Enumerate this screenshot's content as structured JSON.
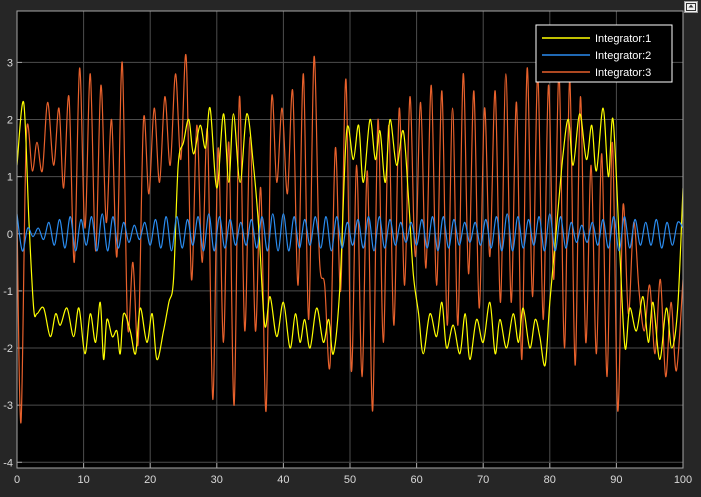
{
  "window": {
    "undock_icon": "undock-axes-icon"
  },
  "colors": {
    "background": "#262626",
    "axes_bg": "#000000",
    "grid": "#4d4d4d",
    "axes_border": "#a6a6a6",
    "tick_text": "#d9d9d9"
  },
  "chart_data": {
    "type": "line",
    "title": "",
    "xlabel": "",
    "ylabel": "",
    "xlim": [
      0,
      100
    ],
    "ylim": [
      -4.1,
      3.9
    ],
    "xticks": [
      0,
      10,
      20,
      30,
      40,
      50,
      60,
      70,
      80,
      90,
      100
    ],
    "yticks": [
      -4,
      -3,
      -2,
      -1,
      0,
      1,
      2,
      3
    ],
    "grid": true,
    "legend_position": "top-right",
    "series": [
      {
        "name": "Integrator:1",
        "color": "#ffff00",
        "x": [
          0,
          1,
          1.8,
          2.5,
          3,
          4,
          5,
          5.8,
          6.5,
          7.5,
          8.5,
          9.3,
          10.2,
          11,
          11.8,
          12.5,
          13,
          13.5,
          14.3,
          15,
          15.5,
          16,
          17,
          17.8,
          18.5,
          19.5,
          20.3,
          21,
          22,
          22.8,
          23.5,
          24.2,
          25,
          25.8,
          26.5,
          27.5,
          28.3,
          29,
          30,
          31,
          31.8,
          32.5,
          33.5,
          34.5,
          35.5,
          36.3,
          37.2,
          38,
          39,
          40,
          41,
          41.8,
          42.5,
          43.2,
          44,
          45,
          46,
          46.8,
          47.5,
          48.5,
          49.5,
          50.5,
          51.3,
          52,
          53,
          53.8,
          54.5,
          55.3,
          56,
          57,
          58,
          58.8,
          59.5,
          60.3,
          61,
          62,
          63,
          63.8,
          64.5,
          65.5,
          66.5,
          67.3,
          68,
          69,
          70,
          71,
          71.8,
          72.5,
          73.5,
          74.5,
          75.3,
          76,
          77,
          77.8,
          78.5,
          79.3,
          80,
          81,
          82,
          82.8,
          83.5,
          84.5,
          85.5,
          86.3,
          87,
          88,
          88.8,
          89.5,
          90.5,
          91.3,
          92,
          93,
          94,
          94.8,
          95.5,
          96.5,
          97.5,
          98.3,
          99.2,
          100
        ],
        "y": [
          1.2,
          2.3,
          0.2,
          -1.3,
          -1.4,
          -1.3,
          -1.8,
          -1.4,
          -1.6,
          -1.3,
          -1.8,
          -1.3,
          -2.1,
          -1.4,
          -1.9,
          -1.2,
          -2.2,
          -1.5,
          -1.8,
          -1.7,
          -2.1,
          -1.4,
          -1.7,
          -2.1,
          -1.3,
          -1.9,
          -1.4,
          -2.2,
          -1.7,
          -1.2,
          -0.8,
          1.2,
          1.6,
          2.0,
          1.4,
          1.9,
          1.5,
          2.2,
          0.8,
          2.1,
          0.9,
          2.1,
          0.9,
          2.1,
          1.2,
          0.1,
          -1.6,
          -1.1,
          -1.8,
          -1.2,
          -2.0,
          -1.4,
          -1.9,
          -1.5,
          -2.0,
          -1.3,
          -1.9,
          -1.5,
          -2.1,
          -0.9,
          1.8,
          1.3,
          1.9,
          0.9,
          2.0,
          1.3,
          1.8,
          0.9,
          2.0,
          1.2,
          1.8,
          0.6,
          -0.7,
          -1.4,
          -2.1,
          -1.4,
          -1.8,
          -1.2,
          -2.0,
          -1.6,
          -2.1,
          -1.4,
          -2.2,
          -1.5,
          -1.9,
          -1.2,
          -2.1,
          -1.5,
          -2.0,
          -1.4,
          -1.9,
          -1.3,
          -2.0,
          -1.5,
          -1.8,
          -2.3,
          -1.2,
          0.1,
          1.4,
          2.0,
          1.2,
          2.1,
          1.3,
          1.9,
          1.1,
          2.2,
          1.0,
          2.0,
          -0.3,
          -2.0,
          -1.3,
          -1.7,
          -1.1,
          -1.9,
          -1.2,
          -2.2,
          -1.3,
          -2.0,
          -1.3,
          0.8
        ]
      },
      {
        "name": "Integrator:2",
        "color": "#2a8cf0",
        "x": [
          0,
          0.8,
          1.6,
          2.4,
          3.2,
          4.0,
          4.8,
          5.6,
          6.4,
          7.2,
          8.0,
          8.8,
          9.6,
          10.4,
          11.2,
          12.0,
          12.8,
          13.6,
          14.4,
          15.2,
          16.0,
          16.8,
          17.6,
          18.4,
          19.2,
          20.0,
          20.8,
          21.6,
          22.4,
          23.2,
          24.0,
          24.8,
          25.6,
          26.4,
          27.2,
          28.0,
          28.8,
          29.6,
          30.4,
          31.2,
          32.0,
          32.8,
          33.6,
          34.4,
          35.2,
          36.0,
          36.8,
          37.6,
          38.4,
          39.2,
          40.0,
          40.8,
          41.6,
          42.4,
          43.2,
          44.0,
          44.8,
          45.6,
          46.4,
          47.2,
          48.0,
          48.8,
          49.6,
          50.4,
          51.2,
          52.0,
          52.8,
          53.6,
          54.4,
          55.2,
          56.0,
          56.8,
          57.6,
          58.4,
          59.2,
          60.0,
          60.8,
          61.6,
          62.4,
          63.2,
          64.0,
          64.8,
          65.6,
          66.4,
          67.2,
          68.0,
          68.8,
          69.6,
          70.4,
          71.2,
          72.0,
          72.8,
          73.6,
          74.4,
          75.2,
          76.0,
          76.8,
          77.6,
          78.4,
          79.2,
          80.0,
          80.8,
          81.6,
          82.4,
          83.2,
          84.0,
          84.8,
          85.6,
          86.4,
          87.2,
          88.0,
          88.8,
          89.6,
          90.4,
          91.2,
          92.0,
          92.8,
          93.6,
          94.4,
          95.2,
          96.0,
          96.8,
          97.6,
          98.4,
          99.2,
          100
        ],
        "y": [
          0.35,
          -0.3,
          0.1,
          -0.05,
          0.1,
          -0.1,
          0.2,
          -0.2,
          0.25,
          -0.25,
          0.3,
          -0.3,
          0.25,
          -0.2,
          0.3,
          -0.3,
          0.35,
          -0.3,
          0.3,
          -0.25,
          0.2,
          -0.15,
          0.15,
          -0.1,
          0.2,
          -0.2,
          0.25,
          -0.25,
          0.3,
          -0.3,
          0.3,
          -0.25,
          0.25,
          -0.2,
          0.3,
          -0.3,
          0.35,
          -0.3,
          0.3,
          -0.25,
          0.25,
          -0.2,
          0.2,
          -0.2,
          0.25,
          -0.25,
          0.3,
          -0.3,
          0.35,
          -0.3,
          0.35,
          -0.3,
          0.3,
          -0.25,
          0.25,
          -0.2,
          0.3,
          -0.25,
          0.3,
          -0.3,
          0.3,
          -0.25,
          0.2,
          -0.2,
          0.25,
          -0.25,
          0.3,
          -0.3,
          0.3,
          -0.25,
          0.25,
          -0.2,
          0.2,
          -0.15,
          0.2,
          -0.2,
          0.25,
          -0.25,
          0.3,
          -0.3,
          0.3,
          -0.25,
          0.25,
          -0.2,
          0.2,
          -0.15,
          0.2,
          -0.2,
          0.25,
          -0.25,
          0.3,
          -0.3,
          0.35,
          -0.3,
          0.3,
          -0.25,
          0.25,
          -0.2,
          0.3,
          -0.3,
          0.35,
          -0.3,
          0.3,
          -0.25,
          0.2,
          -0.15,
          0.15,
          -0.15,
          0.2,
          -0.2,
          0.25,
          -0.25,
          0.3,
          -0.3,
          0.3,
          -0.25,
          0.25,
          -0.2,
          0.2,
          -0.2,
          0.25,
          -0.25,
          0.2,
          -0.2,
          0.2,
          0.1
        ]
      },
      {
        "name": "Integrator:3",
        "color": "#e8612c",
        "x": [
          0,
          0.6,
          1.4,
          2.3,
          3.0,
          3.8,
          4.6,
          5.5,
          6.3,
          7.0,
          7.8,
          8.6,
          9.4,
          10.2,
          11.0,
          11.8,
          12.6,
          13.4,
          14.2,
          15.0,
          15.8,
          16.6,
          17.4,
          18.2,
          19.0,
          19.8,
          20.6,
          21.4,
          22.2,
          23.0,
          23.8,
          24.6,
          25.4,
          26.2,
          27.0,
          27.8,
          28.6,
          29.4,
          30.2,
          31.0,
          31.8,
          32.6,
          33.4,
          34.2,
          35.0,
          35.8,
          36.6,
          37.4,
          38.2,
          39.0,
          39.8,
          40.6,
          41.4,
          42.2,
          43.0,
          43.8,
          44.6,
          45.4,
          46.2,
          47.0,
          47.8,
          48.6,
          49.4,
          50.2,
          51.0,
          51.8,
          52.6,
          53.4,
          54.2,
          55.0,
          55.8,
          56.6,
          57.4,
          58.2,
          59.0,
          59.8,
          60.6,
          61.4,
          62.2,
          63.0,
          63.8,
          64.6,
          65.4,
          66.2,
          67.0,
          67.8,
          68.6,
          69.4,
          70.2,
          71.0,
          71.8,
          72.6,
          73.4,
          74.2,
          75.0,
          75.8,
          76.6,
          77.4,
          78.2,
          79.0,
          79.8,
          80.6,
          81.4,
          82.2,
          83.0,
          83.8,
          84.6,
          85.4,
          86.2,
          87.0,
          87.8,
          88.6,
          89.4,
          90.2,
          91.0,
          91.8,
          92.6,
          93.4,
          94.2,
          95.0,
          95.8,
          96.6,
          97.4,
          98.2,
          99.0,
          100
        ],
        "y": [
          0.3,
          -3.3,
          1.7,
          1.1,
          1.6,
          1.1,
          2.3,
          1.2,
          2.2,
          0.8,
          2.4,
          -0.5,
          2.9,
          0.1,
          2.8,
          -0.3,
          2.6,
          0.2,
          2.0,
          -0.4,
          3.0,
          -1.6,
          -0.5,
          -1.9,
          2.0,
          0.7,
          2.2,
          0.9,
          2.4,
          1.2,
          2.8,
          1.3,
          3.1,
          -0.8,
          1.9,
          -0.5,
          1.8,
          -2.9,
          1.5,
          -1.9,
          1.6,
          -3.0,
          2.4,
          -1.7,
          1.7,
          -1.7,
          0.8,
          -3.1,
          2.3,
          0.9,
          2.2,
          0.7,
          2.5,
          -0.9,
          2.8,
          -1.5,
          3.1,
          -0.4,
          -0.9,
          -2.3,
          1.5,
          -1.0,
          2.7,
          -2.4,
          1.2,
          -2.5,
          1.1,
          -3.1,
          2.0,
          -1.9,
          1.9,
          -1.6,
          2.2,
          -0.9,
          2.4,
          -0.4,
          2.3,
          -0.6,
          2.6,
          -0.9,
          2.5,
          -1.6,
          2.2,
          -1.6,
          2.8,
          -0.7,
          2.5,
          -1.3,
          2.2,
          -0.4,
          2.5,
          -1.2,
          2.8,
          -1.2,
          2.3,
          -2.2,
          2.9,
          -1.1,
          2.8,
          -1.5,
          2.6,
          -0.8,
          2.8,
          -2.0,
          2.7,
          -2.3,
          2.4,
          -1.9,
          1.2,
          -2.1,
          1.4,
          -2.5,
          1.6,
          -3.1,
          0.5,
          -1.4,
          0.2,
          -1.0,
          -1.7,
          -0.9,
          -2.1,
          -0.8,
          -2.5,
          -1.2,
          -2.4,
          -0.8
        ]
      }
    ]
  }
}
